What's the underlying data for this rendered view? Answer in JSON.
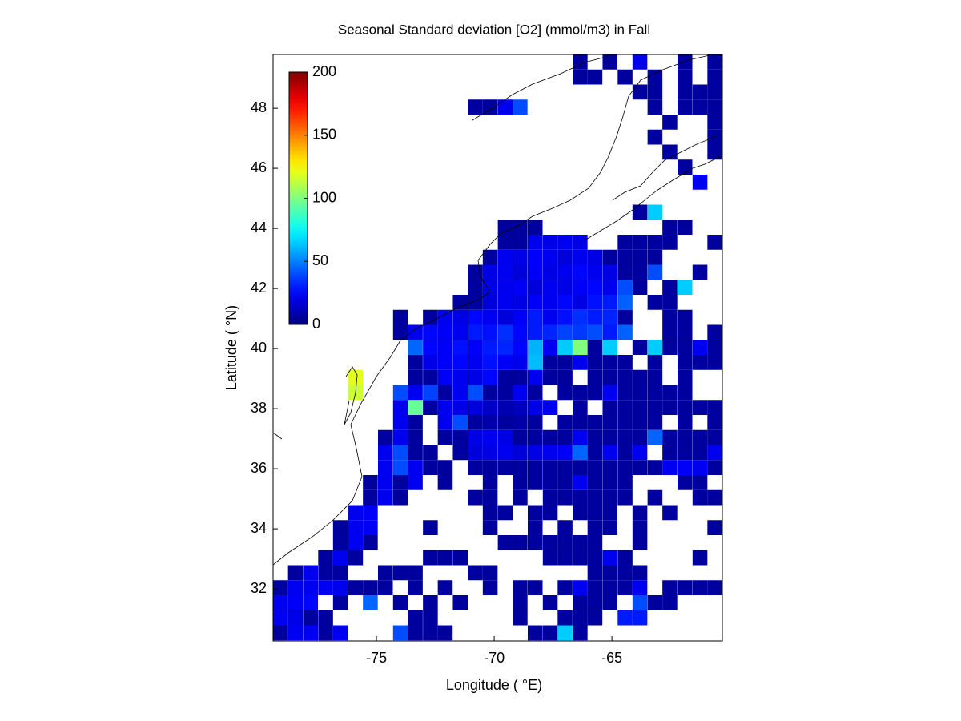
{
  "chart_data": {
    "type": "heatmap",
    "title": "Seasonal Standard deviation [O2] (mmol/m3) in  Fall",
    "xlabel": "Longitude ( °E)",
    "ylabel": "Latitude ( °N)",
    "colormap": "jet",
    "clim": [
      0,
      200
    ],
    "cticks": [
      0,
      50,
      100,
      150,
      200
    ],
    "xlim": [
      -79.39,
      -60.31
    ],
    "ylim": [
      30.27,
      49.79
    ],
    "xticks": [
      -75,
      -70,
      -65
    ],
    "yticks": [
      32,
      34,
      36,
      38,
      40,
      42,
      44,
      46,
      48
    ],
    "x": [
      -79.07,
      -78.44,
      -77.8,
      -77.16,
      -76.53,
      -75.89,
      -75.26,
      -74.62,
      -73.98,
      -73.35,
      -72.71,
      -72.08,
      -71.44,
      -70.8,
      -70.17,
      -69.53,
      -68.9,
      -68.26,
      -67.62,
      -66.99,
      -66.35,
      -65.72,
      -65.08,
      -64.44,
      -63.81,
      -63.17,
      -62.54,
      -61.9,
      -61.26,
      -60.63
    ],
    "y": [
      49.54,
      49.04,
      48.54,
      48.04,
      47.54,
      47.04,
      46.54,
      46.04,
      45.54,
      45.04,
      44.54,
      44.04,
      43.54,
      43.04,
      42.54,
      42.04,
      41.54,
      41.04,
      40.54,
      40.04,
      39.54,
      39.04,
      38.54,
      38.04,
      37.54,
      37.04,
      36.54,
      36.04,
      35.54,
      35.04,
      34.54,
      34.04,
      33.54,
      33.04,
      32.54,
      32.04,
      31.54,
      31.04,
      30.54
    ],
    "z": [
      [
        null,
        null,
        null,
        null,
        null,
        null,
        null,
        null,
        null,
        null,
        null,
        null,
        null,
        null,
        null,
        null,
        null,
        null,
        null,
        null,
        6,
        null,
        6,
        null,
        22,
        null,
        null,
        6,
        null,
        6
      ],
      [
        null,
        null,
        null,
        null,
        null,
        null,
        null,
        null,
        null,
        null,
        null,
        null,
        null,
        null,
        null,
        null,
        null,
        null,
        null,
        null,
        6,
        6,
        null,
        6,
        null,
        6,
        null,
        6,
        null,
        6
      ],
      [
        null,
        null,
        null,
        null,
        null,
        null,
        null,
        null,
        null,
        null,
        null,
        null,
        null,
        null,
        null,
        null,
        null,
        null,
        null,
        null,
        null,
        null,
        null,
        null,
        6,
        6,
        null,
        6,
        6,
        6
      ],
      [
        null,
        null,
        null,
        null,
        null,
        null,
        null,
        null,
        null,
        null,
        null,
        null,
        null,
        6,
        6,
        22,
        40,
        null,
        null,
        null,
        null,
        null,
        null,
        null,
        null,
        6,
        null,
        6,
        6,
        6
      ],
      [
        null,
        null,
        null,
        null,
        null,
        null,
        null,
        null,
        null,
        null,
        null,
        null,
        null,
        null,
        null,
        null,
        null,
        null,
        null,
        null,
        null,
        null,
        null,
        null,
        null,
        null,
        6,
        null,
        null,
        6
      ],
      [
        null,
        null,
        null,
        null,
        null,
        null,
        null,
        null,
        null,
        null,
        null,
        null,
        null,
        null,
        null,
        null,
        null,
        null,
        null,
        null,
        null,
        null,
        null,
        null,
        null,
        6,
        null,
        null,
        null,
        6
      ],
      [
        null,
        null,
        null,
        null,
        null,
        null,
        null,
        null,
        null,
        null,
        null,
        null,
        null,
        null,
        null,
        null,
        null,
        null,
        null,
        null,
        null,
        null,
        null,
        null,
        null,
        null,
        6,
        null,
        null,
        6
      ],
      [
        null,
        null,
        null,
        null,
        null,
        null,
        null,
        null,
        null,
        null,
        null,
        null,
        null,
        null,
        null,
        null,
        null,
        null,
        null,
        null,
        null,
        null,
        null,
        null,
        null,
        null,
        null,
        6,
        null,
        null
      ],
      [
        null,
        null,
        null,
        null,
        null,
        null,
        null,
        null,
        null,
        null,
        null,
        null,
        null,
        null,
        null,
        null,
        null,
        null,
        null,
        null,
        null,
        null,
        null,
        null,
        null,
        null,
        null,
        null,
        22,
        null
      ],
      [
        null,
        null,
        null,
        null,
        null,
        null,
        null,
        null,
        null,
        null,
        null,
        null,
        null,
        null,
        null,
        null,
        null,
        null,
        null,
        null,
        null,
        null,
        null,
        null,
        null,
        null,
        null,
        null,
        null,
        null
      ],
      [
        null,
        null,
        null,
        null,
        null,
        null,
        null,
        null,
        null,
        null,
        null,
        null,
        null,
        null,
        null,
        null,
        null,
        null,
        null,
        null,
        null,
        null,
        null,
        null,
        6,
        65,
        null,
        null,
        null,
        null
      ],
      [
        null,
        null,
        null,
        null,
        null,
        null,
        null,
        null,
        null,
        null,
        null,
        null,
        null,
        null,
        null,
        6,
        6,
        6,
        null,
        null,
        null,
        null,
        null,
        null,
        null,
        null,
        6,
        6,
        null,
        null
      ],
      [
        null,
        null,
        null,
        null,
        null,
        null,
        null,
        null,
        null,
        null,
        null,
        null,
        null,
        null,
        null,
        6,
        6,
        22,
        20,
        22,
        20,
        null,
        null,
        6,
        6,
        6,
        6,
        null,
        null,
        6
      ],
      [
        null,
        null,
        null,
        null,
        null,
        null,
        null,
        null,
        null,
        null,
        null,
        null,
        null,
        null,
        6,
        22,
        20,
        25,
        22,
        18,
        22,
        20,
        6,
        6,
        6,
        6,
        null,
        null,
        null,
        null
      ],
      [
        null,
        null,
        null,
        null,
        null,
        null,
        null,
        null,
        null,
        null,
        null,
        null,
        null,
        6,
        20,
        22,
        18,
        24,
        20,
        22,
        26,
        22,
        20,
        6,
        6,
        40,
        null,
        null,
        6,
        null
      ],
      [
        null,
        null,
        null,
        null,
        null,
        null,
        null,
        null,
        null,
        null,
        null,
        null,
        null,
        6,
        20,
        22,
        24,
        18,
        22,
        20,
        24,
        26,
        22,
        40,
        6,
        null,
        6,
        65,
        null,
        null
      ],
      [
        null,
        null,
        null,
        null,
        null,
        null,
        null,
        null,
        null,
        null,
        null,
        null,
        6,
        6,
        18,
        22,
        20,
        24,
        22,
        26,
        20,
        28,
        30,
        44,
        null,
        6,
        6,
        null,
        null,
        null
      ],
      [
        null,
        null,
        null,
        null,
        null,
        null,
        null,
        null,
        6,
        null,
        6,
        22,
        20,
        26,
        22,
        18,
        24,
        30,
        22,
        28,
        34,
        30,
        32,
        6,
        null,
        null,
        6,
        6,
        null,
        null
      ],
      [
        null,
        null,
        null,
        null,
        null,
        null,
        null,
        null,
        6,
        22,
        26,
        24,
        22,
        30,
        28,
        34,
        26,
        30,
        32,
        38,
        36,
        40,
        30,
        44,
        null,
        null,
        6,
        6,
        null,
        6
      ],
      [
        null,
        null,
        null,
        null,
        null,
        null,
        null,
        null,
        null,
        45,
        26,
        24,
        28,
        24,
        30,
        32,
        26,
        60,
        22,
        65,
        100,
        6,
        65,
        null,
        6,
        65,
        6,
        6,
        22,
        6
      ],
      [
        null,
        null,
        null,
        null,
        null,
        null,
        null,
        null,
        null,
        6,
        20,
        24,
        26,
        22,
        28,
        24,
        22,
        62,
        6,
        6,
        22,
        6,
        6,
        6,
        null,
        6,
        null,
        6,
        6,
        6
      ],
      [
        null,
        null,
        null,
        null,
        null,
        120,
        null,
        null,
        null,
        6,
        6,
        24,
        22,
        20,
        26,
        6,
        6,
        22,
        6,
        6,
        null,
        6,
        6,
        6,
        6,
        6,
        null,
        6,
        null,
        null
      ],
      [
        null,
        null,
        null,
        null,
        null,
        115,
        null,
        null,
        40,
        22,
        38,
        6,
        22,
        40,
        6,
        6,
        22,
        6,
        null,
        6,
        6,
        6,
        22,
        6,
        6,
        6,
        6,
        6,
        null,
        null
      ],
      [
        null,
        null,
        null,
        null,
        null,
        null,
        null,
        null,
        22,
        95,
        6,
        22,
        20,
        18,
        14,
        10,
        12,
        20,
        22,
        null,
        6,
        null,
        6,
        6,
        6,
        6,
        6,
        6,
        6,
        6
      ],
      [
        null,
        null,
        null,
        null,
        null,
        null,
        null,
        null,
        22,
        6,
        null,
        22,
        40,
        6,
        8,
        6,
        8,
        6,
        null,
        6,
        6,
        6,
        6,
        6,
        6,
        6,
        null,
        6,
        null,
        6
      ],
      [
        null,
        null,
        null,
        null,
        null,
        null,
        null,
        6,
        22,
        6,
        null,
        6,
        6,
        20,
        22,
        20,
        6,
        6,
        6,
        6,
        22,
        6,
        6,
        6,
        6,
        45,
        6,
        6,
        6,
        6
      ],
      [
        null,
        null,
        null,
        null,
        null,
        null,
        null,
        22,
        40,
        6,
        6,
        null,
        6,
        18,
        20,
        22,
        18,
        20,
        22,
        24,
        45,
        6,
        22,
        6,
        22,
        null,
        6,
        6,
        6,
        22
      ],
      [
        null,
        null,
        null,
        null,
        null,
        null,
        null,
        22,
        40,
        22,
        6,
        6,
        null,
        6,
        6,
        6,
        6,
        6,
        6,
        6,
        6,
        6,
        6,
        6,
        6,
        6,
        22,
        24,
        22,
        6
      ],
      [
        null,
        null,
        null,
        null,
        null,
        null,
        6,
        22,
        6,
        22,
        null,
        6,
        null,
        null,
        6,
        null,
        6,
        6,
        6,
        6,
        22,
        6,
        6,
        6,
        null,
        null,
        null,
        6,
        6,
        null
      ],
      [
        null,
        null,
        null,
        null,
        null,
        null,
        6,
        22,
        6,
        null,
        null,
        null,
        null,
        6,
        6,
        null,
        6,
        null,
        6,
        6,
        6,
        6,
        6,
        6,
        null,
        6,
        null,
        null,
        6,
        6
      ],
      [
        null,
        null,
        null,
        null,
        null,
        22,
        24,
        null,
        null,
        null,
        null,
        null,
        null,
        null,
        6,
        6,
        null,
        6,
        6,
        null,
        6,
        6,
        6,
        null,
        6,
        null,
        6,
        null,
        null,
        null
      ],
      [
        null,
        null,
        null,
        null,
        6,
        22,
        24,
        null,
        null,
        null,
        6,
        null,
        null,
        null,
        6,
        null,
        null,
        6,
        null,
        6,
        null,
        6,
        6,
        null,
        6,
        null,
        null,
        null,
        null,
        6
      ],
      [
        null,
        null,
        null,
        null,
        6,
        22,
        6,
        null,
        null,
        null,
        null,
        null,
        null,
        null,
        null,
        6,
        6,
        6,
        6,
        6,
        6,
        6,
        null,
        null,
        6,
        null,
        null,
        null,
        null,
        null
      ],
      [
        null,
        null,
        null,
        6,
        22,
        6,
        null,
        null,
        null,
        null,
        6,
        6,
        6,
        null,
        null,
        null,
        null,
        null,
        6,
        6,
        6,
        6,
        22,
        6,
        null,
        null,
        null,
        null,
        6,
        null
      ],
      [
        null,
        6,
        22,
        6,
        6,
        null,
        null,
        6,
        6,
        6,
        null,
        null,
        null,
        6,
        6,
        null,
        null,
        null,
        null,
        null,
        null,
        6,
        6,
        6,
        6,
        null,
        null,
        null,
        null,
        null
      ],
      [
        6,
        22,
        22,
        22,
        22,
        6,
        6,
        6,
        null,
        6,
        null,
        6,
        null,
        null,
        6,
        null,
        6,
        6,
        null,
        6,
        22,
        6,
        6,
        6,
        22,
        null,
        6,
        6,
        6,
        6
      ],
      [
        22,
        24,
        26,
        null,
        6,
        null,
        45,
        null,
        6,
        null,
        6,
        null,
        6,
        null,
        null,
        null,
        6,
        null,
        6,
        null,
        6,
        6,
        6,
        null,
        40,
        6,
        6,
        null,
        null,
        null
      ],
      [
        22,
        20,
        6,
        6,
        null,
        null,
        null,
        null,
        null,
        6,
        6,
        null,
        null,
        null,
        null,
        null,
        6,
        null,
        null,
        6,
        6,
        6,
        null,
        30,
        30,
        null,
        null,
        null,
        null,
        null
      ],
      [
        6,
        22,
        22,
        6,
        22,
        null,
        null,
        null,
        40,
        6,
        6,
        6,
        null,
        null,
        null,
        null,
        null,
        6,
        6,
        65,
        6,
        null,
        null,
        null,
        null,
        null,
        null,
        null,
        null,
        null
      ]
    ]
  }
}
